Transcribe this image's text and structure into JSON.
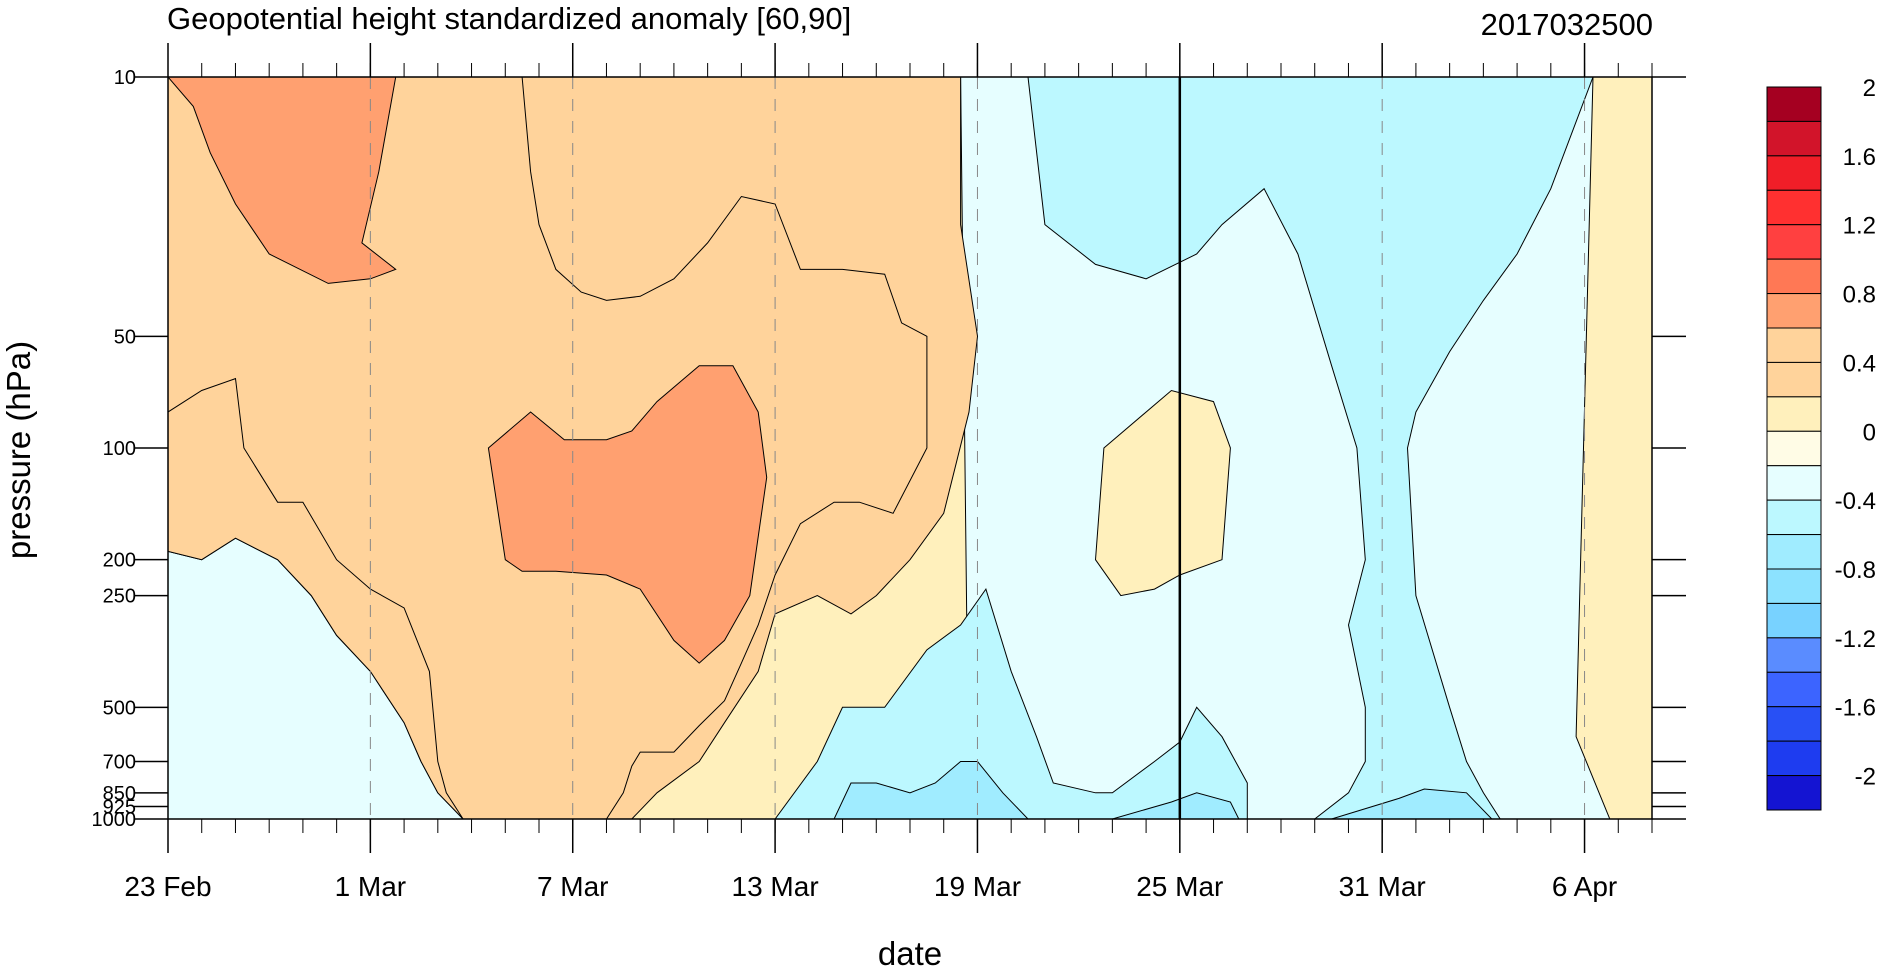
{
  "chart_data": {
    "type": "heatmap",
    "title": "Geopotential height standardized anomaly [60,90]",
    "timestamp": "2017032500",
    "xlabel": "date",
    "ylabel": "pressure (hPa)",
    "y_scale": "log",
    "y_inverted": true,
    "ylim": [
      1000,
      10
    ],
    "xlim": [
      "2017-02-23",
      "2017-04-08"
    ],
    "x_ticks": [
      {
        "date": "2017-02-23",
        "label": "23 Feb"
      },
      {
        "date": "2017-03-01",
        "label": "1 Mar"
      },
      {
        "date": "2017-03-07",
        "label": "7 Mar"
      },
      {
        "date": "2017-03-13",
        "label": "13 Mar"
      },
      {
        "date": "2017-03-19",
        "label": "19 Mar"
      },
      {
        "date": "2017-03-25",
        "label": "25 Mar"
      },
      {
        "date": "2017-03-31",
        "label": "31 Mar"
      },
      {
        "date": "2017-04-06",
        "label": "6 Apr"
      }
    ],
    "y_ticks": [
      10,
      50,
      100,
      200,
      250,
      500,
      700,
      850,
      925,
      1000
    ],
    "y_tick_labels": [
      "10",
      "50",
      "100",
      "200",
      "250",
      "500",
      "700",
      "850",
      "925",
      "1000"
    ],
    "reference_line_date": "2017-03-25",
    "colorbar": {
      "levels": [
        -2.2,
        -2,
        -1.8,
        -1.6,
        -1.4,
        -1.2,
        -1,
        -0.8,
        -0.6,
        -0.4,
        -0.2,
        0,
        0.2,
        0.4,
        0.6,
        0.8,
        1,
        1.2,
        1.4,
        1.6,
        1.8,
        2,
        2.2
      ],
      "labels": [
        "-2",
        "-1.6",
        "-1.2",
        "-0.8",
        "-0.4",
        "0",
        "0.4",
        "0.8",
        "1.2",
        "1.6",
        "2"
      ],
      "colors": [
        "#1414d2",
        "#1e3cf0",
        "#2850f5",
        "#3c64ff",
        "#5a8cff",
        "#78d2ff",
        "#8ce2ff",
        "#a0ecff",
        "#bcf8ff",
        "#e6feff",
        "#fffce6",
        "#fff0bc",
        "#ffd39b",
        "#ffd39b",
        "#ffa070",
        "#ff7855",
        "#ff4040",
        "#ff3030",
        "#f01e28",
        "#d2142a",
        "#a50021"
      ]
    },
    "regions": [
      {
        "value": -0.3,
        "points": [
          [
            "2017-03-18 12:00",
            10
          ],
          [
            "2017-04-06 06:00",
            10
          ],
          [
            "2017-04-05 18:00",
            600
          ],
          [
            "2017-04-06 18:00",
            1000
          ],
          [
            "2017-03-18 18:00",
            1000
          ]
        ]
      },
      {
        "value": -0.5,
        "points": [
          [
            "2017-03-20 12:00",
            10
          ],
          [
            "2017-04-06 06:00",
            10
          ],
          [
            "2017-04-05 00:00",
            20
          ],
          [
            "2017-04-04 00:00",
            30
          ],
          [
            "2017-04-03 00:00",
            40
          ],
          [
            "2017-04-02 00:00",
            55
          ],
          [
            "2017-04-01 00:00",
            80
          ],
          [
            "2017-03-31 18:00",
            100
          ],
          [
            "2017-04-01 00:00",
            250
          ],
          [
            "2017-04-02 00:00",
            500
          ],
          [
            "2017-04-02 12:00",
            700
          ],
          [
            "2017-04-03 00:00",
            850
          ],
          [
            "2017-04-03 12:00",
            1000
          ],
          [
            "2017-03-26 12:00",
            1000
          ],
          [
            "2017-03-29 00:00",
            1000
          ],
          [
            "2017-03-30 00:00",
            850
          ],
          [
            "2017-03-30 12:00",
            700
          ],
          [
            "2017-03-30 12:00",
            500
          ],
          [
            "2017-03-30 00:00",
            300
          ],
          [
            "2017-03-30 12:00",
            200
          ],
          [
            "2017-03-30 06:00",
            100
          ],
          [
            "2017-03-29 12:00",
            60
          ],
          [
            "2017-03-28 12:00",
            30
          ],
          [
            "2017-03-27 12:00",
            20
          ],
          [
            "2017-03-26 06:00",
            25
          ],
          [
            "2017-03-25 12:00",
            30
          ],
          [
            "2017-03-24 00:00",
            35
          ],
          [
            "2017-03-22 12:00",
            32
          ],
          [
            "2017-03-21 00:00",
            25
          ]
        ]
      },
      {
        "value": -0.5,
        "points": [
          [
            "2017-03-13 00:00",
            1000
          ],
          [
            "2017-03-14 06:00",
            700
          ],
          [
            "2017-03-15 00:00",
            500
          ],
          [
            "2017-03-16 06:00",
            500
          ],
          [
            "2017-03-17 12:00",
            350
          ],
          [
            "2017-03-18 12:00",
            300
          ],
          [
            "2017-03-19 06:00",
            240
          ],
          [
            "2017-03-20 00:00",
            400
          ],
          [
            "2017-03-20 18:00",
            600
          ],
          [
            "2017-03-21 06:00",
            800
          ],
          [
            "2017-03-22 12:00",
            850
          ],
          [
            "2017-03-23 00:00",
            850
          ],
          [
            "2017-03-24 06:00",
            700
          ],
          [
            "2017-03-25 00:00",
            620
          ],
          [
            "2017-03-25 12:00",
            500
          ],
          [
            "2017-03-26 06:00",
            600
          ],
          [
            "2017-03-27 00:00",
            800
          ],
          [
            "2017-03-27 00:00",
            1000
          ]
        ]
      },
      {
        "value": -0.7,
        "points": [
          [
            "2017-03-14 18:00",
            1000
          ],
          [
            "2017-03-15 06:00",
            800
          ],
          [
            "2017-03-16 00:00",
            800
          ],
          [
            "2017-03-17 00:00",
            850
          ],
          [
            "2017-03-17 18:00",
            800
          ],
          [
            "2017-03-18 12:00",
            700
          ],
          [
            "2017-03-19 00:00",
            700
          ],
          [
            "2017-03-19 18:00",
            850
          ],
          [
            "2017-03-20 12:00",
            1000
          ]
        ]
      },
      {
        "value": -0.7,
        "points": [
          [
            "2017-03-23 00:00",
            1000
          ],
          [
            "2017-03-24 18:00",
            900
          ],
          [
            "2017-03-25 12:00",
            850
          ],
          [
            "2017-03-26 12:00",
            900
          ],
          [
            "2017-03-26 18:00",
            1000
          ]
        ]
      },
      {
        "value": -0.7,
        "points": [
          [
            "2017-03-29 12:00",
            1000
          ],
          [
            "2017-03-31 12:00",
            880
          ],
          [
            "2017-04-01 06:00",
            830
          ],
          [
            "2017-04-02 12:00",
            850
          ],
          [
            "2017-04-03 06:00",
            1000
          ]
        ]
      },
      {
        "value": -0.5,
        "points": [
          [
            "2017-02-24 00:00",
            1000
          ],
          [
            "2017-02-24 06:00",
            750
          ],
          [
            "2017-02-24 12:00",
            500
          ],
          [
            "2017-02-25 06:00",
            380
          ],
          [
            "2017-02-25 18:00",
            500
          ],
          [
            "2017-02-26 00:00",
            1000
          ]
        ]
      },
      {
        "value": -0.3,
        "points": [
          [
            "2017-02-23 00:00",
            190
          ],
          [
            "2017-02-24 00:00",
            200
          ],
          [
            "2017-02-25 00:00",
            175
          ],
          [
            "2017-02-26 06:00",
            200
          ],
          [
            "2017-02-27 06:00",
            250
          ],
          [
            "2017-02-28 00:00",
            320
          ],
          [
            "2017-03-01 00:00",
            400
          ],
          [
            "2017-03-02 00:00",
            550
          ],
          [
            "2017-03-02 12:00",
            700
          ],
          [
            "2017-03-03 00:00",
            850
          ],
          [
            "2017-03-03 18:00",
            1000
          ],
          [
            "2017-02-23 00:00",
            1000
          ]
        ]
      },
      {
        "value": 0.3,
        "points": [
          [
            "2017-02-23 00:00",
            10
          ],
          [
            "2017-03-18 12:00",
            10
          ],
          [
            "2017-03-18 12:00",
            25
          ],
          [
            "2017-03-19 00:00",
            50
          ],
          [
            "2017-03-18 18:00",
            80
          ],
          [
            "2017-03-18 00:00",
            150
          ],
          [
            "2017-03-17 00:00",
            200
          ],
          [
            "2017-03-16 00:00",
            250
          ],
          [
            "2017-03-15 06:00",
            280
          ],
          [
            "2017-03-14 06:00",
            250
          ],
          [
            "2017-03-13 00:00",
            280
          ],
          [
            "2017-03-12 12:00",
            400
          ],
          [
            "2017-03-11 12:00",
            550
          ],
          [
            "2017-03-10 18:00",
            700
          ],
          [
            "2017-03-09 12:00",
            850
          ],
          [
            "2017-03-08 18:00",
            1000
          ],
          [
            "2017-03-03 18:00",
            1000
          ],
          [
            "2017-03-03 00:00",
            850
          ],
          [
            "2017-03-02 12:00",
            700
          ],
          [
            "2017-03-02 00:00",
            550
          ],
          [
            "2017-03-01 00:00",
            400
          ],
          [
            "2017-02-28 00:00",
            320
          ],
          [
            "2017-02-27 06:00",
            250
          ],
          [
            "2017-02-26 06:00",
            200
          ],
          [
            "2017-02-25 00:00",
            175
          ],
          [
            "2017-02-24 00:00",
            200
          ],
          [
            "2017-02-23 00:00",
            190
          ]
        ]
      },
      {
        "value": 0.3,
        "points": [
          [
            "2017-03-25 12:00",
            10
          ],
          [
            "2017-04-06 06:00",
            10
          ],
          [
            "2017-04-05 18:00",
            600
          ],
          [
            "2017-04-06 18:00",
            1000
          ],
          [
            "2017-03-25 12:00",
            1000
          ]
        ],
        "skip": true
      },
      {
        "value": 0.3,
        "points": [
          [
            "2017-04-06 06:00",
            10
          ],
          [
            "2017-04-08 00:00",
            10
          ],
          [
            "2017-04-08 00:00",
            1000
          ],
          [
            "2017-04-06 18:00",
            1000
          ],
          [
            "2017-04-05 18:00",
            850
          ],
          [
            "2017-04-05 12:00",
            600
          ],
          [
            "2017-04-05 12:00",
            300
          ],
          [
            "2017-04-05 18:00",
            200
          ],
          [
            "2017-04-06 00:00",
            100
          ],
          [
            "2017-04-07 00:00",
            75
          ],
          [
            "2017-04-08 00:00",
            45
          ]
        ],
        "skip": true
      },
      {
        "value": 0.1,
        "points": [
          [
            "2017-03-22 18:00",
            100
          ],
          [
            "2017-03-24 18:00",
            70
          ],
          [
            "2017-03-26 00:00",
            75
          ],
          [
            "2017-03-26 12:00",
            100
          ],
          [
            "2017-03-26 06:00",
            200
          ],
          [
            "2017-03-25 00:00",
            220
          ],
          [
            "2017-03-24 06:00",
            240
          ],
          [
            "2017-03-23 06:00",
            250
          ],
          [
            "2017-03-22 12:00",
            200
          ]
        ]
      },
      {
        "value": 0.5,
        "points": [
          [
            "2017-02-23 00:00",
            10
          ],
          [
            "2017-03-17 12:00",
            10
          ],
          [
            "2017-03-14 06:00",
            10
          ],
          [
            "2017-03-12 12:00",
            10
          ],
          [
            "2017-03-09 06:00",
            10
          ],
          [
            "2017-03-05 12:00",
            10
          ],
          [
            "2017-03-05 18:00",
            18
          ],
          [
            "2017-03-06 00:00",
            25
          ],
          [
            "2017-03-06 12:00",
            33
          ],
          [
            "2017-03-07 06:00",
            38
          ],
          [
            "2017-03-08 00:00",
            40
          ],
          [
            "2017-03-09 00:00",
            39
          ],
          [
            "2017-03-10 00:00",
            35
          ],
          [
            "2017-03-11 00:00",
            28
          ],
          [
            "2017-03-12 00:00",
            21
          ],
          [
            "2017-03-13 00:00",
            22
          ],
          [
            "2017-03-13 18:00",
            33
          ],
          [
            "2017-03-15 00:00",
            33
          ],
          [
            "2017-03-16 06:00",
            34
          ],
          [
            "2017-03-16 18:00",
            46
          ],
          [
            "2017-03-17 12:00",
            50
          ],
          [
            "2017-03-17 12:00",
            100
          ],
          [
            "2017-03-16 12:00",
            150
          ],
          [
            "2017-03-15 12:00",
            140
          ],
          [
            "2017-03-14 18:00",
            140
          ],
          [
            "2017-03-13 18:00",
            160
          ],
          [
            "2017-03-13 00:00",
            220
          ],
          [
            "2017-03-12 12:00",
            300
          ],
          [
            "2017-03-12 00:00",
            380
          ],
          [
            "2017-03-11 12:00",
            480
          ],
          [
            "2017-03-10 18:00",
            560
          ],
          [
            "2017-03-10 00:00",
            660
          ],
          [
            "2017-03-09 00:00",
            660
          ],
          [
            "2017-03-08 18:00",
            720
          ],
          [
            "2017-03-08 12:00",
            850
          ],
          [
            "2017-03-08 00:00",
            1000
          ],
          [
            "2017-03-03 18:00",
            1000
          ],
          [
            "2017-03-03 06:00",
            850
          ],
          [
            "2017-03-03 00:00",
            700
          ],
          [
            "2017-03-02 18:00",
            400
          ],
          [
            "2017-03-02 00:00",
            270
          ],
          [
            "2017-03-01 00:00",
            240
          ],
          [
            "2017-02-28 00:00",
            200
          ],
          [
            "2017-02-27 00:00",
            140
          ],
          [
            "2017-02-26 06:00",
            140
          ],
          [
            "2017-02-25 06:00",
            100
          ],
          [
            "2017-02-25 00:00",
            65
          ],
          [
            "2017-02-24 00:00",
            70
          ],
          [
            "2017-02-23 00:00",
            80
          ]
        ]
      },
      {
        "value": 0.7,
        "points": [
          [
            "2017-02-23 00:00",
            10
          ],
          [
            "2017-03-01 18:00",
            10
          ],
          [
            "2017-03-01 06:00",
            18
          ],
          [
            "2017-03-00 18:00",
            28
          ],
          [
            "2017-02-29 18:00",
            33
          ],
          [
            "2017-02-29 00:00",
            35
          ],
          [
            "2017-02-27 18:00",
            36
          ],
          [
            "2017-02-26 00:00",
            30
          ],
          [
            "2017-02-25 00:00",
            22
          ],
          [
            "2017-02-24 06:00",
            16
          ],
          [
            "2017-02-23 18:00",
            12
          ]
        ]
      },
      {
        "value": 0.7,
        "points": [
          [
            "2017-03-04 12:00",
            100
          ],
          [
            "2017-03-05 18:00",
            80
          ],
          [
            "2017-03-06 18:00",
            95
          ],
          [
            "2017-03-08 00:00",
            95
          ],
          [
            "2017-03-08 18:00",
            90
          ],
          [
            "2017-03-09 12:00",
            75
          ],
          [
            "2017-03-10 18:00",
            60
          ],
          [
            "2017-03-11 18:00",
            60
          ],
          [
            "2017-03-12 12:00",
            80
          ],
          [
            "2017-03-12 18:00",
            120
          ],
          [
            "2017-03-12 06:00",
            250
          ],
          [
            "2017-03-11 12:00",
            330
          ],
          [
            "2017-03-10 18:00",
            380
          ],
          [
            "2017-03-10 00:00",
            330
          ],
          [
            "2017-03-09 00:00",
            240
          ],
          [
            "2017-03-08 00:00",
            220
          ],
          [
            "2017-03-06 12:00",
            215
          ],
          [
            "2017-03-05 12:00",
            215
          ],
          [
            "2017-03-05 00:00",
            200
          ]
        ]
      }
    ]
  }
}
